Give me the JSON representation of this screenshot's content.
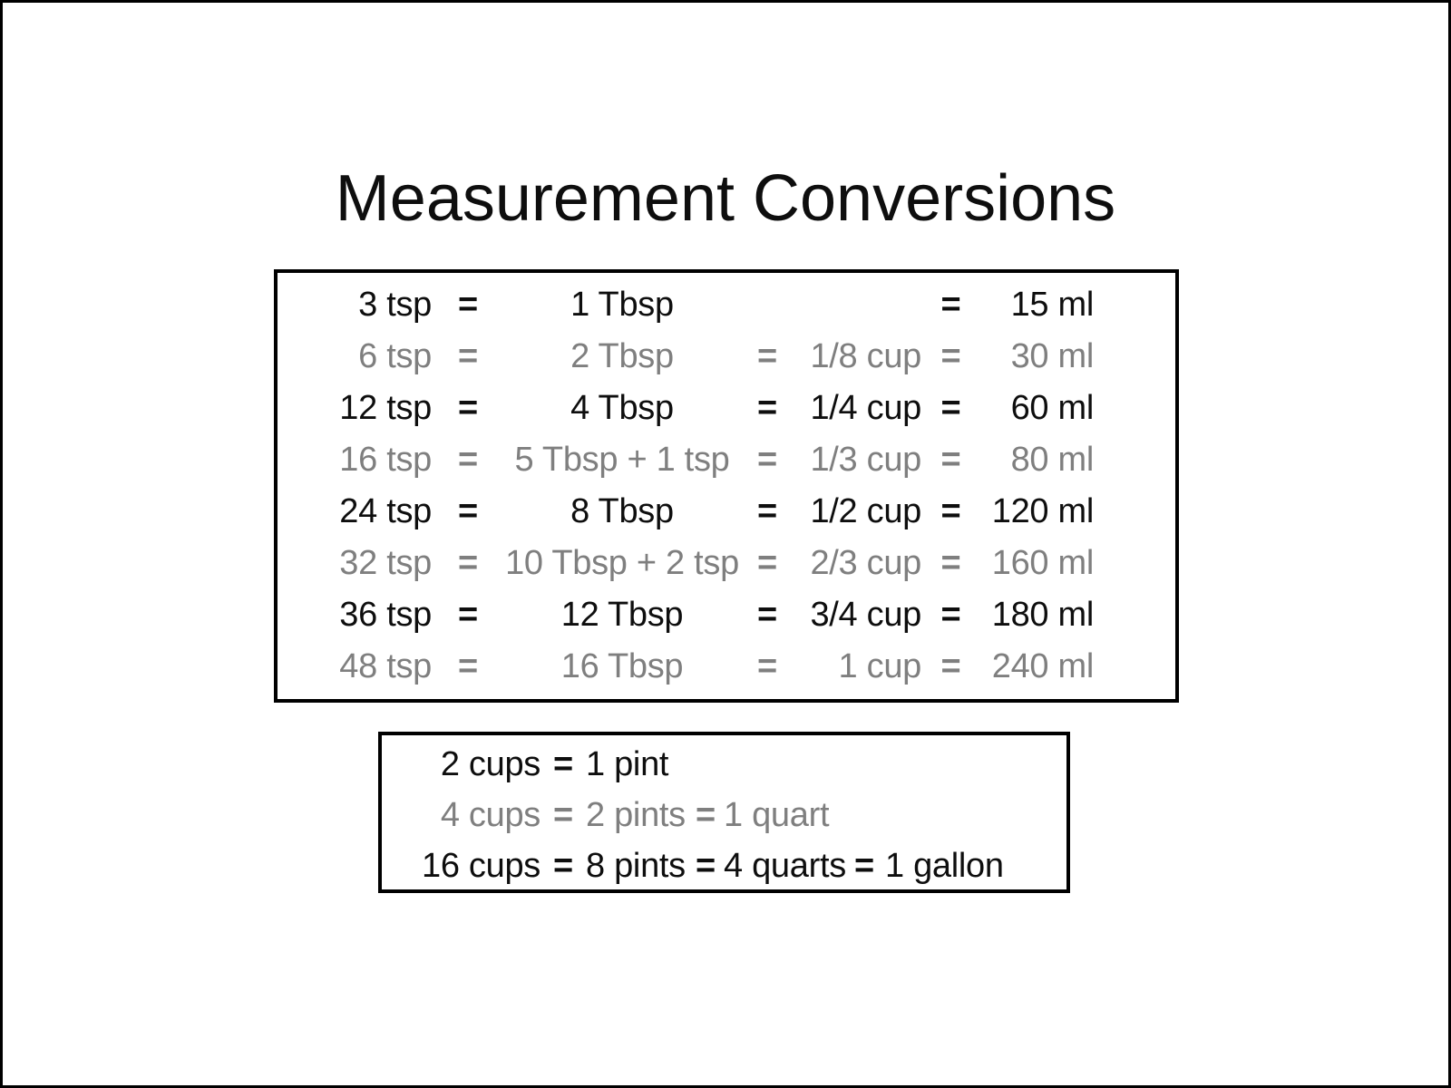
{
  "title": "Measurement Conversions",
  "colors": {
    "background": "#ffffff",
    "border": "#000000",
    "text_primary": "#0e0e0e",
    "text_muted": "#7f7f7f"
  },
  "chart_data": [
    {
      "type": "table",
      "title": "Measurement Conversions",
      "columns": [
        "tsp",
        "=",
        "Tbsp",
        "=",
        "cup",
        "=",
        "ml"
      ],
      "legend_position": "none",
      "rows": [
        {
          "tone": "black",
          "cells": [
            "3 tsp",
            "=",
            "1 Tbsp",
            "",
            "",
            "=",
            "15 ml"
          ]
        },
        {
          "tone": "gray",
          "cells": [
            "6 tsp",
            "=",
            "2 Tbsp",
            "=",
            "1/8 cup",
            "=",
            "30 ml"
          ]
        },
        {
          "tone": "black",
          "cells": [
            "12 tsp",
            "=",
            "4 Tbsp",
            "=",
            "1/4 cup",
            "=",
            "60 ml"
          ]
        },
        {
          "tone": "gray",
          "cells": [
            "16 tsp",
            "=",
            "5 Tbsp + 1 tsp",
            "=",
            "1/3 cup",
            "=",
            "80 ml"
          ]
        },
        {
          "tone": "black",
          "cells": [
            "24 tsp",
            "=",
            "8 Tbsp",
            "=",
            "1/2 cup",
            "=",
            "120 ml"
          ]
        },
        {
          "tone": "gray",
          "cells": [
            "32 tsp",
            "=",
            "10 Tbsp + 2 tsp",
            "=",
            "2/3 cup",
            "=",
            "160 ml"
          ]
        },
        {
          "tone": "black",
          "cells": [
            "36 tsp",
            "=",
            "12 Tbsp",
            "=",
            "3/4 cup",
            "=",
            "180 ml"
          ]
        },
        {
          "tone": "gray",
          "cells": [
            "48 tsp",
            "=",
            "16 Tbsp",
            "=",
            "1 cup",
            "=",
            "240 ml"
          ]
        }
      ]
    },
    {
      "type": "table",
      "title": "",
      "columns": [
        "cups",
        "=",
        "pints",
        "=",
        "quarts",
        "=",
        "gallons"
      ],
      "legend_position": "none",
      "rows": [
        {
          "tone": "black",
          "cells": [
            "2 cups",
            "=",
            "1 pint",
            "",
            "",
            "",
            ""
          ]
        },
        {
          "tone": "gray",
          "cells": [
            "4 cups",
            "=",
            "2 pints",
            "=",
            "1 quart",
            "",
            ""
          ]
        },
        {
          "tone": "black",
          "cells": [
            "16 cups",
            "=",
            "8 pints",
            "=",
            "4 quarts",
            "=",
            "1 gallon"
          ]
        }
      ]
    }
  ]
}
